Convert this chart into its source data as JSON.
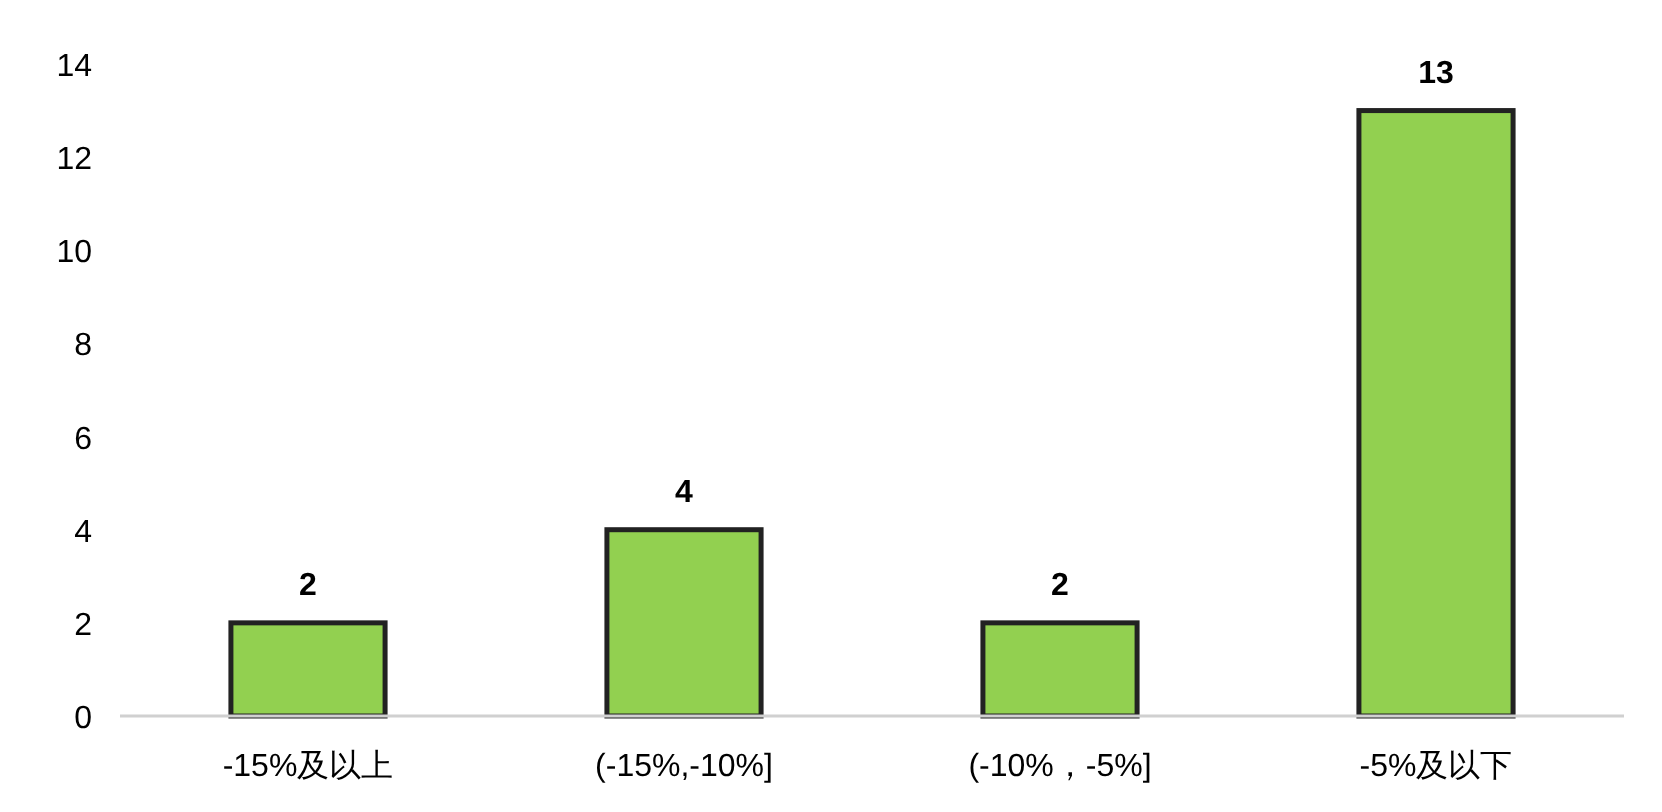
{
  "chart_data": {
    "type": "bar",
    "categories": [
      "-15%及以上",
      "(-15%,-10%]",
      "(-10%，-5%]",
      "-5%及以下"
    ],
    "values": [
      2,
      4,
      2,
      13
    ],
    "color": "#92d050",
    "ylim": [
      0,
      14
    ],
    "yticks": [
      0,
      2,
      4,
      6,
      8,
      10,
      12,
      14
    ],
    "data_labels": true,
    "grid": false
  }
}
